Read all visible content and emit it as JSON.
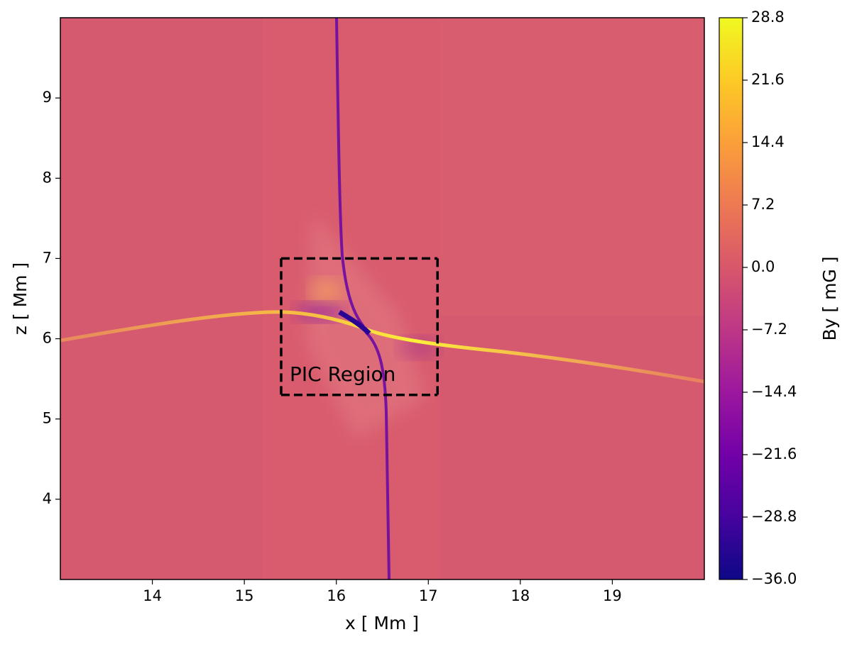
{
  "chart_data": {
    "type": "heatmap",
    "xlabel": "x [ Mm ]",
    "ylabel": "z [ Mm ]",
    "xlim": [
      13,
      20
    ],
    "ylim": [
      3,
      10
    ],
    "xticks": [
      14,
      15,
      16,
      17,
      18,
      19
    ],
    "yticks": [
      4,
      5,
      6,
      7,
      8,
      9
    ],
    "colormap": "plasma",
    "colorbar": {
      "label": "By [ mG ]",
      "lim": [
        -36,
        28.8
      ],
      "ticks": [
        {
          "value": -36,
          "label": "−36.0"
        },
        {
          "value": -28.8,
          "label": "−28.8"
        },
        {
          "value": -21.6,
          "label": "−21.6"
        },
        {
          "value": -14.4,
          "label": "−14.4"
        },
        {
          "value": -7.2,
          "label": "−7.2"
        },
        {
          "value": 0,
          "label": "0.0"
        },
        7.2,
        14.4,
        21.6,
        28.8
      ]
    },
    "region": {
      "label": "PIC Region",
      "x": [
        15.4,
        17.1
      ],
      "y": [
        5.3,
        7.0
      ]
    }
  }
}
